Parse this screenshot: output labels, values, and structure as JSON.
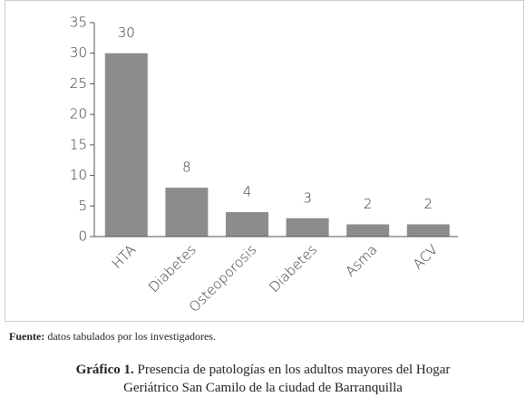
{
  "chart_data": {
    "type": "bar",
    "categories": [
      "HTA",
      "Diabetes",
      "Osteoporosis",
      "Diabetes",
      "Asma",
      "ACV"
    ],
    "values": [
      30,
      8,
      4,
      3,
      2,
      2
    ],
    "color": "#8c8c8c",
    "ylim": [
      0,
      35
    ],
    "yticks": [
      0,
      5,
      10,
      15,
      20,
      25,
      30,
      35
    ],
    "grid": false
  },
  "source": {
    "label": "Fuente:",
    "text": "datos tabulados por los investigadores."
  },
  "caption": {
    "label": "Gráfico 1.",
    "text": "Presencia de patologías en los adultos mayores del Hogar Geriátrico San Camilo de la ciudad de Barranquilla"
  }
}
